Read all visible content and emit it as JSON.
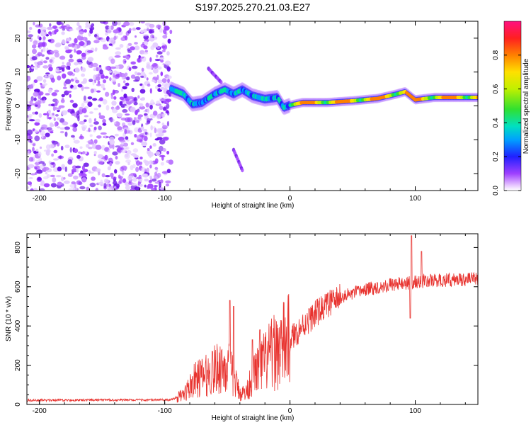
{
  "title": "S197.2025.270.21.03.E27",
  "colors": {
    "snr_line": "#e8332f",
    "axis": "#000000",
    "background": "#ffffff"
  },
  "chart_data": [
    {
      "type": "heatmap",
      "name": "spectrogram",
      "xlabel": "Height of straight line (km)",
      "ylabel": "Frequency (Hz)",
      "xlim": [
        -210,
        150
      ],
      "ylim": [
        -25,
        25
      ],
      "x_ticks": [
        -200,
        -100,
        0,
        100
      ],
      "y_ticks": [
        -20,
        -10,
        0,
        10,
        20
      ],
      "colorbar": {
        "label": "Normalized spectral amplitude",
        "range": [
          0,
          1
        ],
        "ticks": [
          0.0,
          0.2,
          0.4,
          0.6,
          0.8
        ]
      },
      "noise_region": {
        "x_range": [
          -210,
          -95
        ],
        "y_range": [
          -25,
          25
        ]
      },
      "ridge": [
        {
          "x": -95,
          "f": 5.0
        },
        {
          "x": -85,
          "f": 3.5
        },
        {
          "x": -78,
          "f": 0.5
        },
        {
          "x": -70,
          "f": 1.0
        },
        {
          "x": -60,
          "f": 3.5
        },
        {
          "x": -52,
          "f": 4.8
        },
        {
          "x": -45,
          "f": 3.5
        },
        {
          "x": -38,
          "f": 4.8
        },
        {
          "x": -30,
          "f": 3.0
        },
        {
          "x": -20,
          "f": 2.0
        },
        {
          "x": -10,
          "f": 2.5
        },
        {
          "x": -5,
          "f": -0.5
        },
        {
          "x": 0,
          "f": 0.2
        },
        {
          "x": 10,
          "f": 1.0
        },
        {
          "x": 30,
          "f": 1.0
        },
        {
          "x": 50,
          "f": 1.5
        },
        {
          "x": 70,
          "f": 2.2
        },
        {
          "x": 85,
          "f": 3.5
        },
        {
          "x": 92,
          "f": 4.2
        },
        {
          "x": 100,
          "f": 1.8
        },
        {
          "x": 115,
          "f": 2.5
        },
        {
          "x": 130,
          "f": 2.5
        },
        {
          "x": 150,
          "f": 2.5
        }
      ],
      "side_branches": [
        {
          "x": [
            -65,
            -55
          ],
          "f": [
            11,
            7
          ]
        },
        {
          "x": [
            -45,
            -38
          ],
          "f": [
            -13,
            -19
          ]
        }
      ]
    },
    {
      "type": "line",
      "name": "snr",
      "xlabel": "Height of straight line (km)",
      "ylabel": "SNR (10 * v/v)",
      "xlim": [
        -210,
        150
      ],
      "ylim": [
        0,
        870
      ],
      "x_ticks": [
        -200,
        -100,
        0,
        100
      ],
      "y_ticks": [
        0,
        200,
        400,
        600,
        800
      ],
      "envelope": [
        {
          "x": -210,
          "y": 20
        },
        {
          "x": -95,
          "y": 22
        },
        {
          "x": -85,
          "y": 50
        },
        {
          "x": -75,
          "y": 130
        },
        {
          "x": -65,
          "y": 150
        },
        {
          "x": -55,
          "y": 200
        },
        {
          "x": -48,
          "y": 180
        },
        {
          "x": -40,
          "y": 60
        },
        {
          "x": -35,
          "y": 60
        },
        {
          "x": -30,
          "y": 150
        },
        {
          "x": -20,
          "y": 220
        },
        {
          "x": -10,
          "y": 280
        },
        {
          "x": 0,
          "y": 330
        },
        {
          "x": 10,
          "y": 400
        },
        {
          "x": 20,
          "y": 460
        },
        {
          "x": 30,
          "y": 510
        },
        {
          "x": 40,
          "y": 545
        },
        {
          "x": 60,
          "y": 585
        },
        {
          "x": 80,
          "y": 610
        },
        {
          "x": 95,
          "y": 620
        },
        {
          "x": 110,
          "y": 630
        },
        {
          "x": 150,
          "y": 640
        }
      ],
      "spikes": [
        {
          "x": -48,
          "y": 530
        },
        {
          "x": -45,
          "y": 500
        },
        {
          "x": -62,
          "y": 270
        },
        {
          "x": -30,
          "y": 330
        },
        {
          "x": -24,
          "y": 380
        },
        {
          "x": 97,
          "y": 860
        },
        {
          "x": 96,
          "y": 440
        },
        {
          "x": 105,
          "y": 780
        }
      ]
    }
  ]
}
